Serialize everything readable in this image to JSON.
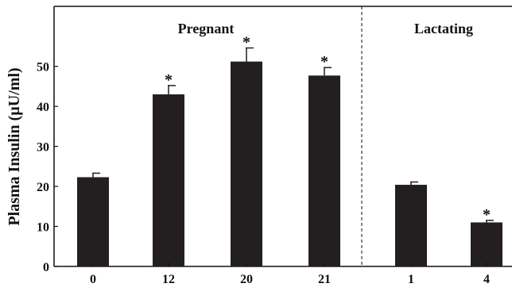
{
  "chart_data": {
    "type": "bar",
    "title": "",
    "xlabel": "",
    "ylabel": "Plasma Insulin (µU/ml)",
    "ylim": [
      0,
      65
    ],
    "yticks": [
      0,
      10,
      20,
      30,
      40,
      50
    ],
    "grid": false,
    "groups": [
      {
        "label": "Pregnant",
        "category_indices": [
          0,
          1,
          2,
          3
        ]
      },
      {
        "label": "Lactating",
        "category_indices": [
          4,
          5
        ]
      }
    ],
    "categories": [
      "0",
      "12",
      "20",
      "21",
      "1",
      "4"
    ],
    "values": [
      22.3,
      43.0,
      51.2,
      47.7,
      20.4,
      11.0
    ],
    "errors": [
      1.0,
      2.2,
      3.4,
      2.0,
      0.7,
      0.5
    ],
    "significance_marker": "*",
    "significant": [
      false,
      true,
      true,
      true,
      false,
      true
    ],
    "colors": {
      "bar": "#231f20",
      "axis": "#111111"
    }
  }
}
